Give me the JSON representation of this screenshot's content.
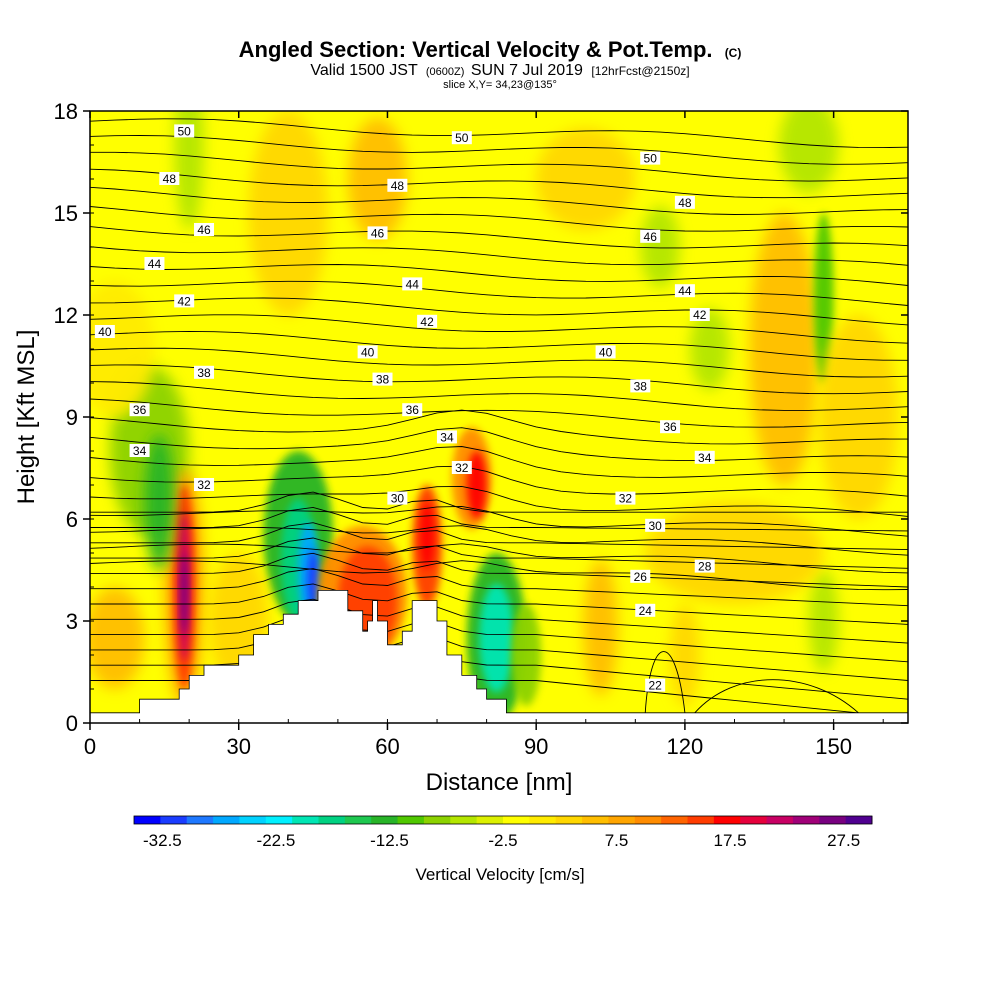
{
  "chart_data": {
    "type": "heatmap",
    "title": "Angled Section: Vertical Velocity & Pot.Temp.",
    "title_unit": "(C)",
    "subtitle": {
      "valid": "Valid 1500 JST",
      "utc": "(0600Z)",
      "date": "SUN 7 Jul 2019",
      "forecast": "[12hrFcst@2150z]"
    },
    "slice": "slice X,Y= 34,23@135°",
    "xlabel": "Distance [nm]",
    "ylabel": "Height [Kft MSL]",
    "xlim": [
      0,
      165
    ],
    "ylim": [
      0,
      18
    ],
    "xticks": [
      0,
      30,
      60,
      90,
      120,
      150
    ],
    "yticks": [
      0,
      3,
      6,
      9,
      12,
      15,
      18
    ],
    "grid": false,
    "colorbar": {
      "label": "Vertical Velocity [cm/s]",
      "min": -35,
      "max": 30,
      "step": 2.5,
      "tick_labels": [
        "-32.5",
        "-22.5",
        "-12.5",
        "-2.5",
        "7.5",
        "17.5",
        "27.5"
      ],
      "tick_values": [
        -32.5,
        -22.5,
        -12.5,
        -2.5,
        7.5,
        17.5,
        27.5
      ],
      "colors": [
        "#0000ff",
        "#1a3cff",
        "#1e78ff",
        "#00a8ff",
        "#00d2ff",
        "#00f0ff",
        "#00e6b4",
        "#00d282",
        "#1ec850",
        "#28b428",
        "#50c800",
        "#8cd200",
        "#b4e600",
        "#dcf000",
        "#ffff00",
        "#ffeb00",
        "#ffd700",
        "#ffbe00",
        "#ffa500",
        "#ff8c00",
        "#ff6400",
        "#ff3c00",
        "#ff0000",
        "#e6003c",
        "#c80064",
        "#a00078",
        "#780080",
        "#500090"
      ]
    },
    "contour_labels": [
      {
        "x": 19,
        "y": 17.4,
        "label": "50"
      },
      {
        "x": 75,
        "y": 17.2,
        "label": "50"
      },
      {
        "x": 113,
        "y": 16.6,
        "label": "50"
      },
      {
        "x": 16,
        "y": 16.0,
        "label": "48"
      },
      {
        "x": 62,
        "y": 15.8,
        "label": "48"
      },
      {
        "x": 120,
        "y": 15.3,
        "label": "48"
      },
      {
        "x": 23,
        "y": 14.5,
        "label": "46"
      },
      {
        "x": 58,
        "y": 14.4,
        "label": "46"
      },
      {
        "x": 113,
        "y": 14.3,
        "label": "46"
      },
      {
        "x": 13,
        "y": 13.5,
        "label": "44"
      },
      {
        "x": 65,
        "y": 12.9,
        "label": "44"
      },
      {
        "x": 120,
        "y": 12.7,
        "label": "44"
      },
      {
        "x": 19,
        "y": 12.4,
        "label": "42"
      },
      {
        "x": 68,
        "y": 11.8,
        "label": "42"
      },
      {
        "x": 123,
        "y": 12.0,
        "label": "42"
      },
      {
        "x": 3,
        "y": 11.5,
        "label": "40"
      },
      {
        "x": 56,
        "y": 10.9,
        "label": "40"
      },
      {
        "x": 104,
        "y": 10.9,
        "label": "40"
      },
      {
        "x": 23,
        "y": 10.3,
        "label": "38"
      },
      {
        "x": 59,
        "y": 10.1,
        "label": "38"
      },
      {
        "x": 111,
        "y": 9.9,
        "label": "38"
      },
      {
        "x": 10,
        "y": 9.2,
        "label": "36"
      },
      {
        "x": 65,
        "y": 9.2,
        "label": "36"
      },
      {
        "x": 117,
        "y": 8.7,
        "label": "36"
      },
      {
        "x": 10,
        "y": 8.0,
        "label": "34"
      },
      {
        "x": 72,
        "y": 8.4,
        "label": "34"
      },
      {
        "x": 124,
        "y": 7.8,
        "label": "34"
      },
      {
        "x": 23,
        "y": 7.0,
        "label": "32"
      },
      {
        "x": 75,
        "y": 7.5,
        "label": "32"
      },
      {
        "x": 108,
        "y": 6.6,
        "label": "32"
      },
      {
        "x": 62,
        "y": 6.6,
        "label": "30"
      },
      {
        "x": 114,
        "y": 5.8,
        "label": "30"
      },
      {
        "x": 111,
        "y": 4.3,
        "label": "26"
      },
      {
        "x": 124,
        "y": 4.6,
        "label": "28"
      },
      {
        "x": 112,
        "y": 3.3,
        "label": "24"
      },
      {
        "x": 114,
        "y": 1.1,
        "label": "22"
      }
    ]
  }
}
